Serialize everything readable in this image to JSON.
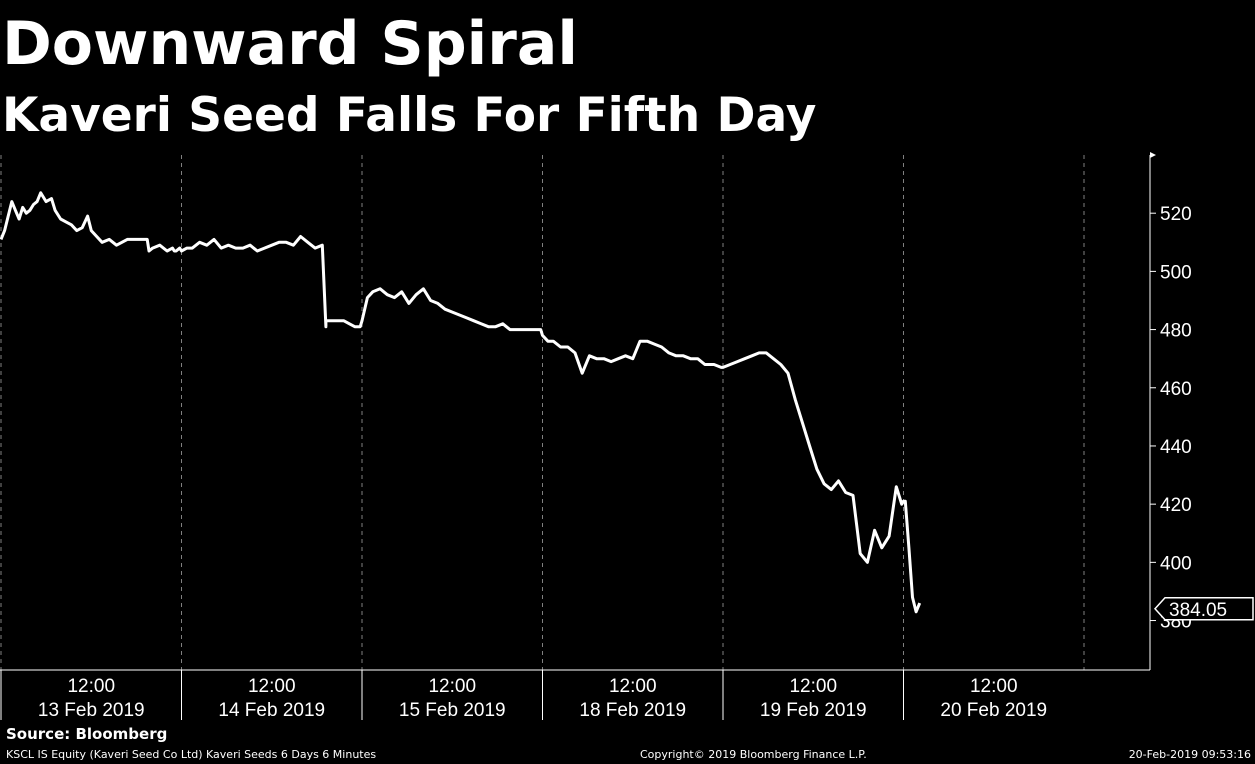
{
  "chart_data": {
    "type": "line",
    "title": "Downward Spiral",
    "subtitle": "Kaveri Seed Falls For Fifth Day",
    "ylim": [
      363,
      540
    ],
    "yticks": [
      380,
      400,
      420,
      440,
      460,
      480,
      500,
      520
    ],
    "days": [
      {
        "time": "12:00",
        "date": "13 Feb 2019"
      },
      {
        "time": "12:00",
        "date": "14 Feb 2019"
      },
      {
        "time": "12:00",
        "date": "15 Feb 2019"
      },
      {
        "time": "12:00",
        "date": "18 Feb 2019"
      },
      {
        "time": "12:00",
        "date": "19 Feb 2019"
      },
      {
        "time": "12:00",
        "date": "20 Feb 2019"
      }
    ],
    "last_value": "384.05",
    "grid": "vertical dashed day separators",
    "series": [
      {
        "x": [
          0.0,
          0.02,
          0.04,
          0.06,
          0.08,
          0.1,
          0.12,
          0.14,
          0.16,
          0.18,
          0.2,
          0.22,
          0.25,
          0.28,
          0.3,
          0.33,
          0.36,
          0.39,
          0.42,
          0.45,
          0.48,
          0.5,
          0.53,
          0.56,
          0.6,
          0.64,
          0.67,
          0.7,
          0.74,
          0.78,
          0.81,
          0.82,
          0.84,
          0.88,
          0.92,
          0.95,
          0.96,
          0.97,
          0.99,
          1.0,
          1.03,
          1.06,
          1.1,
          1.14,
          1.18,
          1.22,
          1.26,
          1.3,
          1.34,
          1.38,
          1.42,
          1.46,
          1.5,
          1.54,
          1.58,
          1.62,
          1.66,
          1.7,
          1.74,
          1.78,
          1.8,
          1.8,
          1.82,
          1.86,
          1.9,
          1.93,
          1.96,
          1.99,
          2.0,
          2.03,
          2.06,
          2.1,
          2.14,
          2.18,
          2.22,
          2.26,
          2.3,
          2.34,
          2.38,
          2.42,
          2.46,
          2.5,
          2.54,
          2.58,
          2.62,
          2.66,
          2.7,
          2.74,
          2.78,
          2.82,
          2.86,
          2.9,
          2.95,
          2.99,
          3.0,
          3.03,
          3.06,
          3.1,
          3.14,
          3.18,
          3.22,
          3.26,
          3.3,
          3.34,
          3.38,
          3.42,
          3.46,
          3.5,
          3.54,
          3.58,
          3.62,
          3.66,
          3.7,
          3.74,
          3.78,
          3.82,
          3.86,
          3.9,
          3.95,
          3.99,
          4.0,
          4.04,
          4.08,
          4.12,
          4.16,
          4.2,
          4.24,
          4.28,
          4.32,
          4.36,
          4.4,
          4.44,
          4.48,
          4.52,
          4.56,
          4.6,
          4.64,
          4.68,
          4.72,
          4.76,
          4.8,
          4.84,
          4.88,
          4.92,
          4.96,
          4.99,
          5.0,
          5.01,
          5.03,
          5.05,
          5.07,
          5.09
        ],
        "y": [
          511,
          514,
          519,
          524,
          521,
          518,
          522,
          520,
          521,
          523,
          524,
          527,
          524,
          525,
          521,
          518,
          517,
          516,
          514,
          515,
          519,
          514,
          512,
          510,
          511,
          509,
          510,
          511,
          511,
          511,
          511,
          507,
          508,
          509,
          507,
          508,
          507,
          507,
          508,
          507,
          508,
          508,
          510,
          509,
          511,
          508,
          509,
          508,
          508,
          509,
          507,
          508,
          509,
          510,
          510,
          509,
          512,
          510,
          508,
          509,
          481,
          483,
          483,
          483,
          483,
          482,
          481,
          481,
          483,
          491,
          493,
          494,
          492,
          491,
          493,
          489,
          492,
          494,
          490,
          489,
          487,
          486,
          485,
          484,
          483,
          482,
          481,
          481,
          482,
          480,
          480,
          480,
          480,
          480,
          478,
          476,
          476,
          474,
          474,
          472,
          465,
          471,
          470,
          470,
          469,
          470,
          471,
          470,
          476,
          476,
          475,
          474,
          472,
          471,
          471,
          470,
          470,
          468,
          468,
          467,
          467,
          468,
          469,
          470,
          471,
          472,
          472,
          470,
          468,
          465,
          456,
          448,
          440,
          432,
          427,
          425,
          428,
          424,
          423,
          403,
          400,
          411,
          405,
          409,
          426,
          420,
          421,
          421,
          405,
          388,
          383,
          386
        ]
      }
    ]
  },
  "source": "Source: Bloomberg",
  "footer": {
    "left": "KSCL IS Equity (Kaveri Seed Co Ltd) Kaveri Seeds 6 Days 6 Minutes",
    "center": "Copyright© 2019 Bloomberg Finance L.P.",
    "right": "20-Feb-2019 09:53:16"
  },
  "colors": {
    "background": "#000000",
    "line": "#ffffff",
    "grid": "#808080"
  }
}
